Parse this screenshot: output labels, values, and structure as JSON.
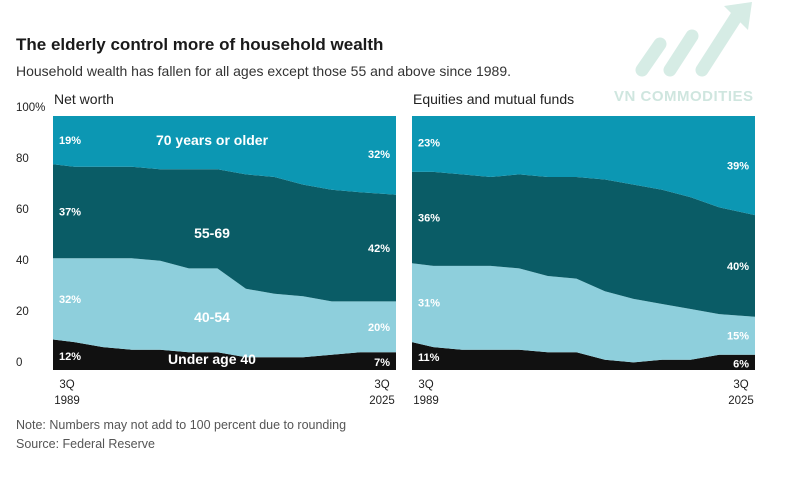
{
  "header": {
    "title": "The elderly control more of household wealth",
    "subtitle": "Household wealth has fallen for all ages except those 55 and above since 1989."
  },
  "footer": {
    "note": "Note: Numbers may not add to 100 percent due to rounding",
    "source": "Source: Federal Reserve"
  },
  "watermark": {
    "text": "VN COMMODITIES",
    "icon": "arrow-up-chart-logo-icon"
  },
  "colors": {
    "under40": "#111111",
    "age40_54": "#8ecfdc",
    "age55_69": "#0a5c66",
    "age70plus": "#0c97b3"
  },
  "chart_data": [
    {
      "type": "area",
      "stacked": true,
      "title": "Net worth",
      "x_start": "3Q 1989",
      "x_end": "3Q 2025",
      "x_tick_labels": [
        [
          "3Q",
          "1989"
        ],
        [
          "3Q",
          "2025"
        ]
      ],
      "y_ticks": [
        "0",
        "20",
        "40",
        "60",
        "80",
        "100%"
      ],
      "ylim": [
        0,
        100
      ],
      "x": [
        1989.75,
        1992,
        1995,
        1998,
        2001,
        2004,
        2007,
        2010,
        2013,
        2016,
        2019,
        2022,
        2025.75
      ],
      "series": [
        {
          "name": "Under age 40",
          "values": [
            12,
            11,
            9,
            8,
            8,
            7,
            7,
            5,
            5,
            5,
            6,
            7,
            7
          ],
          "label_start": "12%",
          "label_end": "7%"
        },
        {
          "name": "40-54",
          "values": [
            32,
            33,
            35,
            36,
            35,
            33,
            33,
            27,
            25,
            24,
            21,
            20,
            20
          ],
          "label_start": "32%",
          "label_end": "20%"
        },
        {
          "name": "55-69",
          "values": [
            37,
            36,
            36,
            36,
            36,
            39,
            39,
            45,
            46,
            44,
            44,
            43,
            42
          ],
          "label_start": "37%",
          "label_end": "42%"
        },
        {
          "name": "70 years or older",
          "values": [
            19,
            20,
            20,
            20,
            21,
            21,
            21,
            23,
            24,
            27,
            29,
            30,
            32
          ],
          "label_start": "19%",
          "label_end": "32%"
        }
      ]
    },
    {
      "type": "area",
      "stacked": true,
      "title": "Equities and mutual funds",
      "x_start": "3Q 1989",
      "x_end": "3Q 2025",
      "x_tick_labels": [
        [
          "3Q",
          "1989"
        ],
        [
          "3Q",
          "2025"
        ]
      ],
      "ylim": [
        0,
        100
      ],
      "x": [
        1989.75,
        1992,
        1995,
        1998,
        2001,
        2004,
        2007,
        2010,
        2013,
        2016,
        2019,
        2022,
        2025.75
      ],
      "series": [
        {
          "name": "Under age 40",
          "values": [
            11,
            9,
            8,
            8,
            8,
            7,
            7,
            4,
            3,
            4,
            4,
            6,
            6
          ],
          "label_start": "11%",
          "label_end": "6%"
        },
        {
          "name": "40-54",
          "values": [
            31,
            32,
            33,
            33,
            32,
            30,
            29,
            27,
            25,
            22,
            20,
            16,
            15
          ],
          "label_start": "31%",
          "label_end": "15%"
        },
        {
          "name": "55-69",
          "values": [
            36,
            37,
            36,
            35,
            37,
            39,
            40,
            44,
            45,
            45,
            44,
            42,
            40
          ],
          "label_start": "36%",
          "label_end": "40%"
        },
        {
          "name": "70 years or older",
          "values": [
            23,
            22,
            23,
            24,
            23,
            24,
            24,
            25,
            27,
            29,
            32,
            36,
            39
          ],
          "label_start": "23%",
          "label_end": "39%"
        }
      ]
    }
  ]
}
